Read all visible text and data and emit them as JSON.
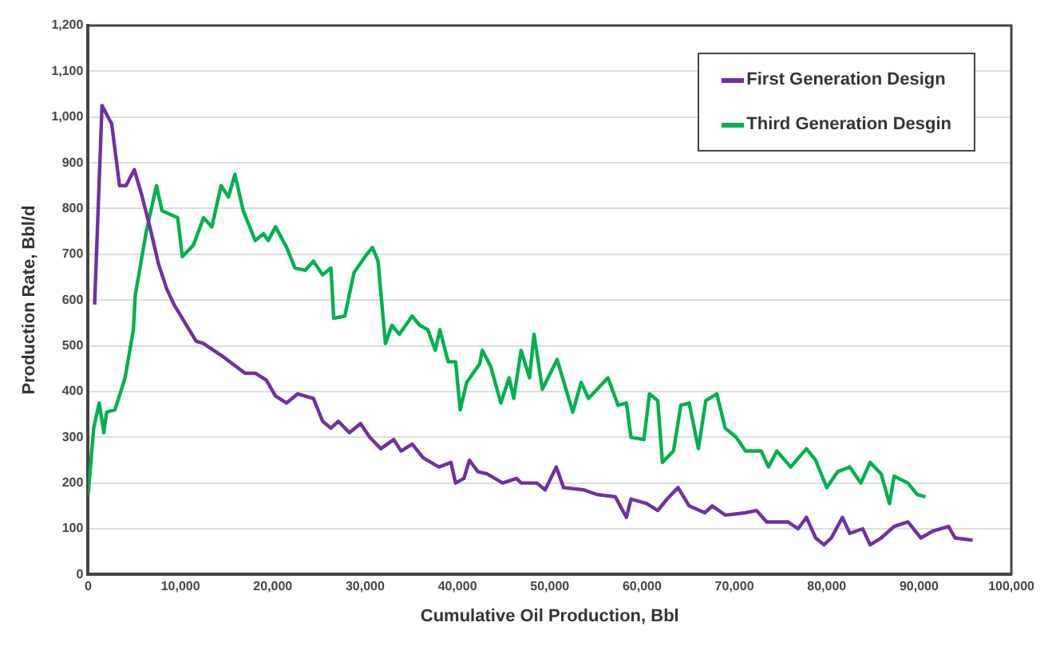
{
  "chart_data": {
    "type": "line",
    "xlabel": "Cumulative Oil Production, Bbl",
    "ylabel": "Production Rate, Bbl/d",
    "xlim": [
      0,
      100000
    ],
    "xticks": [
      0,
      {
        "value": 10000,
        "label": "10,000"
      },
      {
        "value": 20000,
        "label": "20,000"
      },
      {
        "value": 30000,
        "label": "30,000"
      },
      {
        "value": 40000,
        "label": "40,000"
      },
      {
        "value": 50000,
        "label": "50,000"
      },
      {
        "value": 60000,
        "label": "60,000"
      },
      {
        "value": 70000,
        "label": "70,000"
      },
      {
        "value": 80000,
        "label": "80,000"
      },
      {
        "value": 90000,
        "label": "90,000"
      },
      {
        "value": 100000,
        "label": "100,000"
      }
    ],
    "ylim": [
      0,
      1200
    ],
    "yticks": [
      0,
      100,
      200,
      300,
      400,
      500,
      600,
      700,
      800,
      900,
      {
        "value": 1000,
        "label": "1,000"
      },
      {
        "value": 1100,
        "label": "1,100"
      },
      {
        "value": 1200,
        "label": "1,200"
      }
    ],
    "grid": "y",
    "legend": "top right",
    "marker": "none",
    "line_style": "solid",
    "series": [
      {
        "name": "First Generation Design",
        "color": "#7030a0",
        "x": [
          700,
          1500,
          2550,
          3400,
          4100,
          5000,
          5800,
          6800,
          7600,
          8500,
          9300,
          10500,
          11700,
          12500,
          13600,
          14700,
          17000,
          18100,
          19300,
          20300,
          21500,
          22700,
          24400,
          25400,
          26300,
          27100,
          28300,
          29500,
          30500,
          31700,
          33100,
          33900,
          35100,
          36300,
          38000,
          39300,
          39800,
          40700,
          41300,
          42200,
          43200,
          44900,
          46400,
          46900,
          48600,
          49500,
          50700,
          51500,
          53700,
          55100,
          57100,
          58300,
          58800,
          60500,
          61700,
          62700,
          63900,
          65100,
          66800,
          67600,
          69000,
          71200,
          72400,
          73500,
          75800,
          76900,
          77800,
          78800,
          79700,
          80500,
          81700,
          82500,
          83900,
          84700,
          85900,
          87300,
          88800,
          90200,
          91500,
          93200,
          93900,
          95800
        ],
        "values": [
          590,
          1025,
          985,
          850,
          850,
          885,
          830,
          750,
          680,
          625,
          590,
          550,
          510,
          505,
          490,
          475,
          440,
          440,
          425,
          390,
          375,
          395,
          385,
          335,
          320,
          335,
          310,
          330,
          300,
          275,
          295,
          270,
          285,
          255,
          235,
          245,
          200,
          210,
          250,
          225,
          220,
          200,
          210,
          200,
          200,
          185,
          235,
          190,
          185,
          175,
          170,
          125,
          165,
          155,
          140,
          165,
          190,
          150,
          135,
          150,
          130,
          135,
          140,
          115,
          115,
          100,
          125,
          80,
          65,
          80,
          125,
          90,
          100,
          65,
          80,
          105,
          115,
          80,
          95,
          105,
          80,
          75
        ]
      },
      {
        "name": "Third Generation Desgin",
        "color": "#00b050",
        "x": [
          0,
          600,
          1200,
          1700,
          2000,
          2900,
          4000,
          4900,
          5100,
          6300,
          7400,
          8000,
          9700,
          10200,
          11400,
          12500,
          13400,
          14400,
          15200,
          15900,
          16800,
          18100,
          19000,
          19500,
          20300,
          21500,
          22400,
          23500,
          24400,
          25400,
          26300,
          26600,
          27800,
          28800,
          30000,
          30800,
          31400,
          32200,
          32900,
          33700,
          35100,
          35900,
          36800,
          37600,
          38100,
          39000,
          39800,
          40300,
          41000,
          42400,
          42700,
          43600,
          44700,
          45600,
          46100,
          46900,
          47800,
          48300,
          49200,
          50800,
          52500,
          53400,
          54200,
          56300,
          57400,
          58300,
          58800,
          60200,
          60800,
          61700,
          62200,
          63400,
          64200,
          65100,
          66100,
          66900,
          68100,
          69000,
          70200,
          71200,
          72900,
          73700,
          74600,
          76100,
          77800,
          78800,
          80000,
          81200,
          82500,
          83700,
          84700,
          85900,
          86800,
          87300,
          88800,
          89800,
          90700
        ],
        "values": [
          175,
          320,
          375,
          310,
          355,
          360,
          430,
          535,
          610,
          750,
          850,
          795,
          780,
          695,
          720,
          780,
          760,
          850,
          825,
          875,
          795,
          730,
          745,
          730,
          760,
          715,
          670,
          665,
          685,
          655,
          670,
          560,
          565,
          660,
          695,
          715,
          685,
          505,
          545,
          525,
          565,
          545,
          535,
          490,
          535,
          465,
          465,
          360,
          420,
          460,
          490,
          455,
          375,
          430,
          385,
          490,
          430,
          525,
          405,
          470,
          355,
          420,
          385,
          430,
          370,
          375,
          300,
          295,
          395,
          380,
          245,
          270,
          370,
          375,
          275,
          380,
          395,
          320,
          300,
          270,
          270,
          235,
          270,
          235,
          275,
          250,
          190,
          225,
          235,
          200,
          245,
          220,
          155,
          215,
          200,
          175,
          170
        ]
      }
    ]
  }
}
